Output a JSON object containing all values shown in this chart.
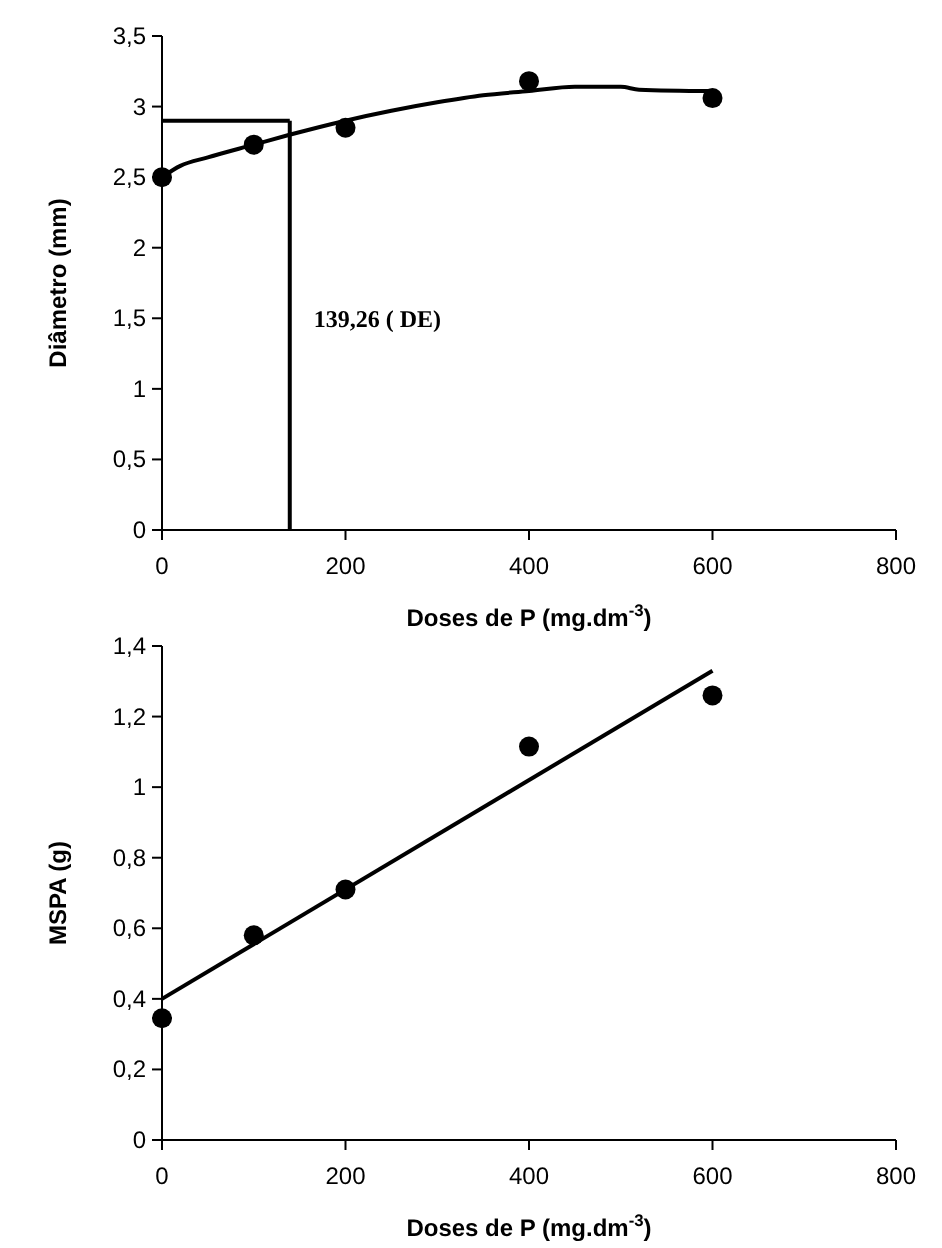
{
  "chart_data": [
    {
      "type": "scatter",
      "xlabel": "Doses de P (mg.dm$^{-3}$)",
      "ylabel": "Diâmetro (mm)",
      "xlim": [
        0,
        800
      ],
      "xticks": [
        0,
        200,
        400,
        600,
        800
      ],
      "ylim": [
        0,
        3.5
      ],
      "yticks": [
        0,
        {
          "value": 0.5,
          "label": "0,5"
        },
        1,
        {
          "value": 1.5,
          "label": "1,5"
        },
        2,
        {
          "value": 2.5,
          "label": "2,5"
        },
        3,
        {
          "value": 3.5,
          "label": "3,5"
        }
      ],
      "grid": false,
      "marker": "circle",
      "series": [
        {
          "color": "#000000",
          "x": [
            0,
            100,
            200,
            400,
            600
          ],
          "values": [
            2.5,
            2.73,
            2.85,
            3.18,
            3.06
          ]
        },
        {
          "type": "line",
          "color": "#000000",
          "line_style": "solid",
          "marker": "none",
          "x": [
            0,
            20,
            50,
            100,
            139,
            200,
            250,
            300,
            350,
            400,
            450,
            500,
            520,
            600
          ],
          "values": [
            2.5,
            2.58,
            2.64,
            2.73,
            2.8,
            2.9,
            2.97,
            3.03,
            3.08,
            3.11,
            3.14,
            3.14,
            3.12,
            3.11
          ]
        }
      ],
      "ref_lines": [
        {
          "axis": "x",
          "value": 139.26,
          "label": "139,26 ( DE)",
          "color": "#000000"
        },
        {
          "axis": "y",
          "value": 2.9,
          "color": "#000000"
        }
      ]
    },
    {
      "type": "scatter",
      "xlabel": "Doses de P (mg.dm$^{-3}$)",
      "ylabel": "MSPA (g)",
      "xlim": [
        0,
        800
      ],
      "xticks": [
        0,
        200,
        400,
        600,
        800
      ],
      "ylim": [
        0,
        1.4
      ],
      "yticks": [
        0,
        {
          "value": 0.2,
          "label": "0,2"
        },
        {
          "value": 0.4,
          "label": "0,4"
        },
        {
          "value": 0.6,
          "label": "0,6"
        },
        {
          "value": 0.8,
          "label": "0,8"
        },
        1,
        {
          "value": 1.2,
          "label": "1,2"
        },
        {
          "value": 1.4,
          "label": "1,4"
        }
      ],
      "grid": false,
      "marker": "circle",
      "series": [
        {
          "color": "#000000",
          "x": [
            0,
            100,
            200,
            400,
            600
          ],
          "values": [
            0.345,
            0.58,
            0.71,
            1.115,
            1.26
          ]
        },
        {
          "type": "line",
          "color": "#000000",
          "line_style": "solid",
          "marker": "none",
          "x": [
            0,
            600
          ],
          "values": [
            0.4,
            1.33
          ]
        }
      ]
    }
  ]
}
